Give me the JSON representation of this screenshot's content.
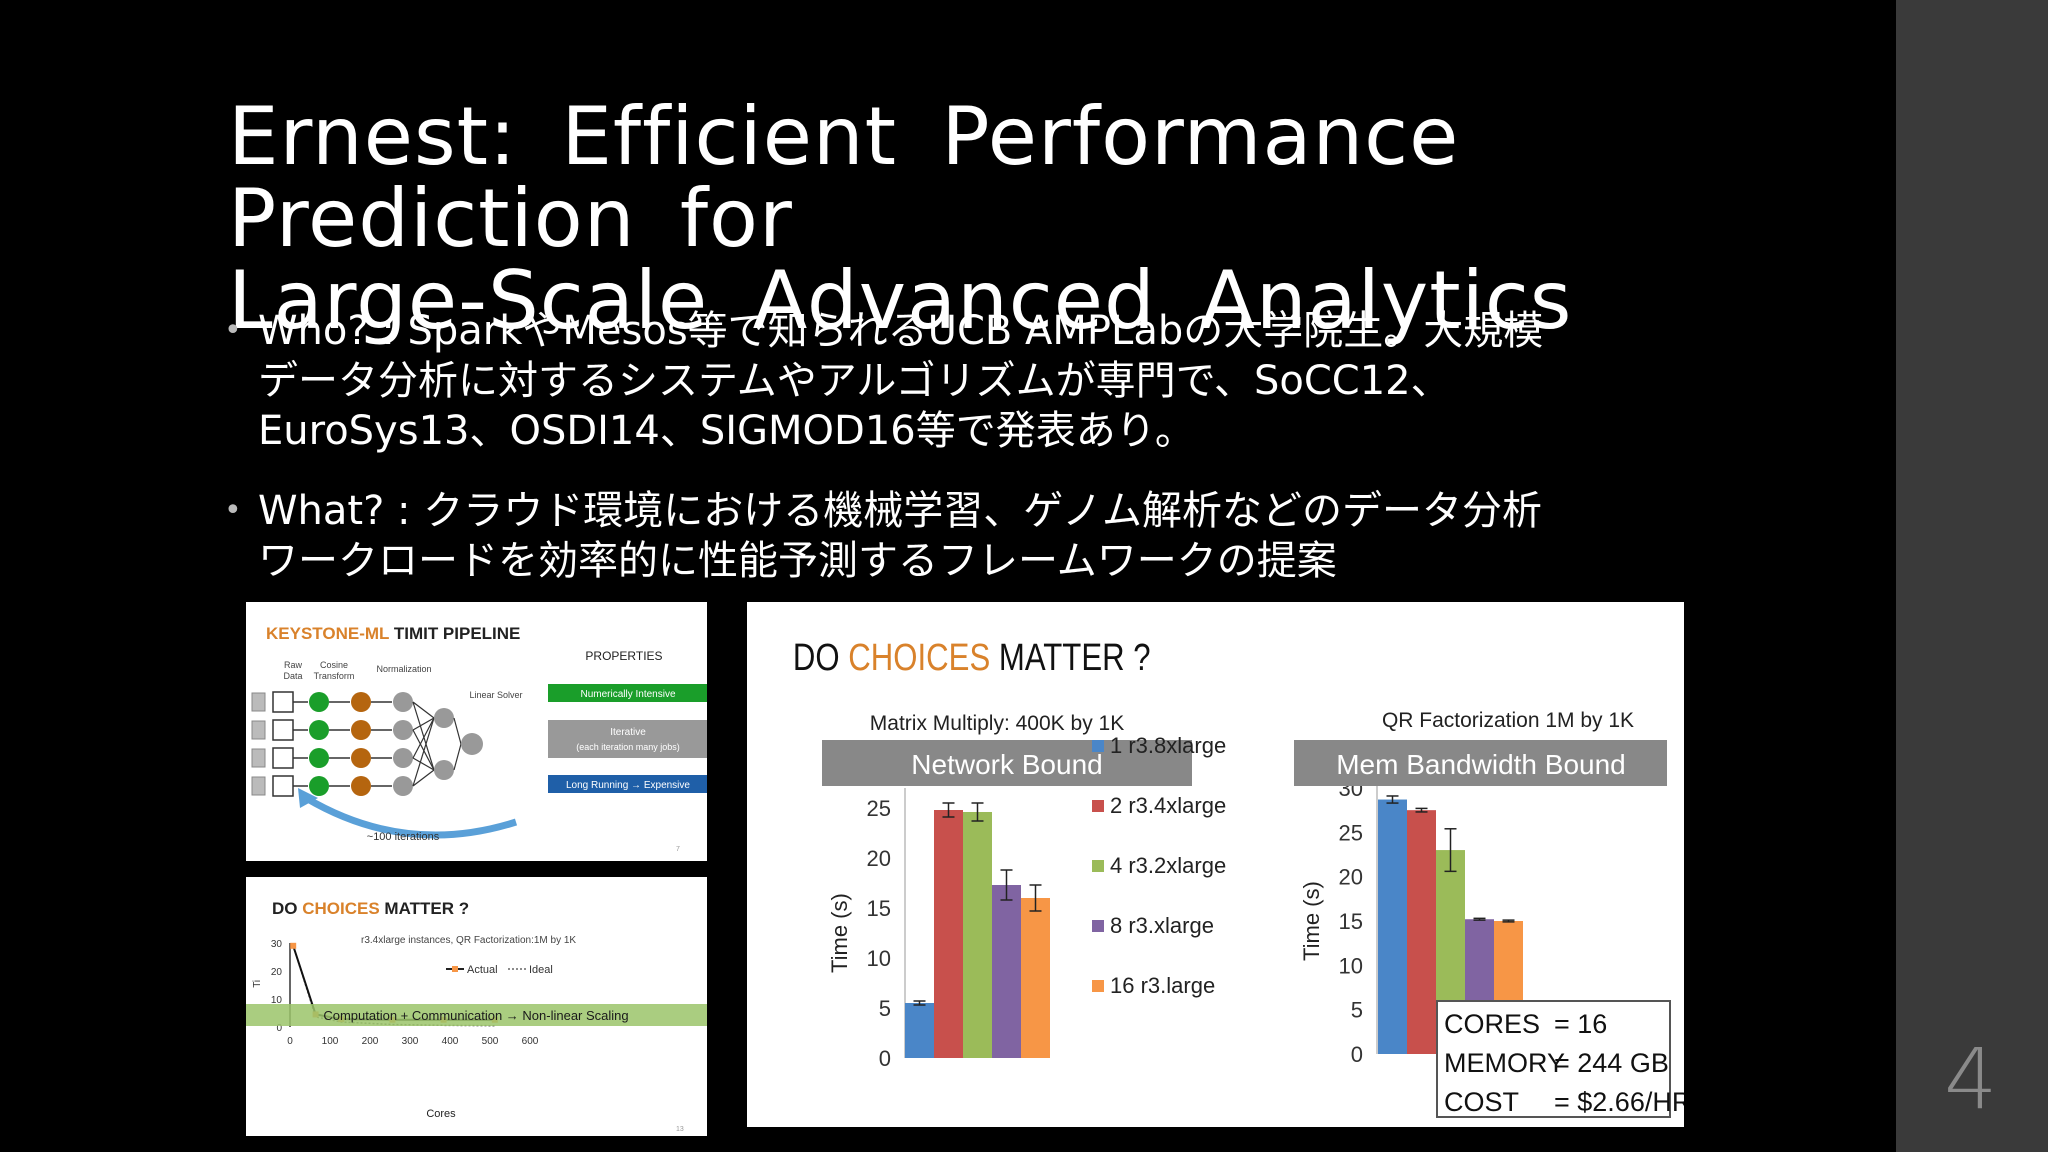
{
  "slide": {
    "title_line1": "Ernest: Efficient Performance Prediction for",
    "title_line2": "Large-Scale Advanced Analytics",
    "bullets": [
      {
        "lines": [
          "Who? : SparkやMesos等で知られるUCB AMPLabの大学院生。大規模",
          "データ分析に対するシステムやアルゴリズムが専門で、SoCC12、",
          "EuroSys13、OSDI14、SIGMOD16等で発表あり。"
        ]
      },
      {
        "lines": [
          "What? : クラウド環境における機械学習、ゲノム解析などのデータ分析",
          "ワークロードを効率的に性能予測するフレームワークの提案"
        ]
      }
    ],
    "page_number": "4"
  },
  "keystone": {
    "title_a": "KEYSTONE-ML",
    "title_b": " TIMIT PIPELINE",
    "col_raw": [
      "Raw",
      "Data"
    ],
    "col_cosine": [
      "Cosine",
      "Transform"
    ],
    "col_norm": "Normalization",
    "col_solver": "Linear Solver",
    "iterations": "~100 iterations",
    "properties_title": "PROPERTIES",
    "prop1": "Numerically Intensive",
    "prop2a": "Iterative",
    "prop2b": "(each iteration many jobs)",
    "prop3": "Long Running → Expensive",
    "slide_no": "7",
    "colors": {
      "orange": "#d9822b",
      "green": "#1a9e2a",
      "brown": "#b5650f",
      "gray": "#999999",
      "blue": "#1f5fa8",
      "prop_gray": "#999999"
    }
  },
  "small_chart": {
    "title_a": "DO ",
    "title_b": "CHOICES",
    "title_c": " MATTER ?",
    "subtitle": "r3.4xlarge instances, QR Factorization:1M by 1K",
    "legend_actual": "Actual",
    "legend_ideal": "Ideal",
    "banner": "Computation + Communication → Non-linear Scaling",
    "ylabel": "Ti",
    "xlabel": "Cores",
    "yticks": [
      "30",
      "20",
      "10",
      "0"
    ],
    "xticks": [
      "0",
      "100",
      "200",
      "300",
      "400",
      "500",
      "600"
    ],
    "slide_no": "13",
    "chart_data": {
      "type": "line",
      "series": [
        {
          "name": "Actual",
          "x": [
            8,
            64,
            128,
            256,
            384,
            512
          ],
          "y": [
            29,
            4.5,
            2.8,
            2.6,
            2.6,
            2.6
          ]
        },
        {
          "name": "Ideal",
          "x": [
            8,
            64,
            128,
            256,
            384,
            512
          ],
          "y": [
            29,
            3.6,
            1.8,
            0.9,
            0.6,
            0.45
          ]
        }
      ],
      "xlim": [
        0,
        600
      ],
      "ylim": [
        0,
        30
      ],
      "xlabel": "Cores"
    }
  },
  "big_chart": {
    "title_a": "DO ",
    "title_b": "CHOICES",
    "title_c": " MATTER ?",
    "left_subtitle": "Matrix Multiply: 400K by 1K",
    "left_banner": "Network Bound",
    "right_subtitle": "QR Factorization 1M by 1K",
    "right_banner": "Mem Bandwidth Bound",
    "ylabel": "Time (s)",
    "left_yticks": [
      "25",
      "20",
      "15",
      "10",
      "5",
      "0"
    ],
    "right_yticks": [
      "30",
      "25",
      "20",
      "15",
      "10",
      "5",
      "0"
    ],
    "legend": [
      "1 r3.8xlarge",
      "2 r3.4xlarge",
      "4 r3.2xlarge",
      "8 r3.xlarge",
      "16 r3.large"
    ],
    "info": [
      {
        "k": "CORES",
        "v": "= 16"
      },
      {
        "k": "MEMORY",
        "v": "= 244 GB"
      },
      {
        "k": "COST",
        "v": "= $2.66/HR"
      }
    ],
    "colors": [
      "#4a86c8",
      "#c8504c",
      "#9bbb59",
      "#8064a2",
      "#f79646"
    ],
    "chart_data": [
      {
        "type": "bar",
        "title": "Matrix Multiply: 400K by 1K",
        "ylabel": "Time (s)",
        "ylim": [
          0,
          25
        ],
        "categories": [
          "1 r3.8xlarge",
          "2 r3.4xlarge",
          "4 r3.2xlarge",
          "8 r3.xlarge",
          "16 r3.large"
        ],
        "values": [
          5.5,
          24.8,
          24.6,
          17.3,
          16.0
        ],
        "errors": [
          0.2,
          0.7,
          0.9,
          1.5,
          1.3
        ]
      },
      {
        "type": "bar",
        "title": "QR Factorization 1M by 1K",
        "ylabel": "Time (s)",
        "ylim": [
          0,
          30
        ],
        "categories": [
          "1 r3.8xlarge",
          "2 r3.4xlarge",
          "4 r3.2xlarge",
          "8 r3.xlarge",
          "16 r3.large"
        ],
        "values": [
          28.7,
          27.5,
          23.0,
          15.2,
          15.0
        ],
        "errors": [
          0.4,
          0.2,
          2.4,
          0.1,
          0.1
        ]
      }
    ]
  }
}
